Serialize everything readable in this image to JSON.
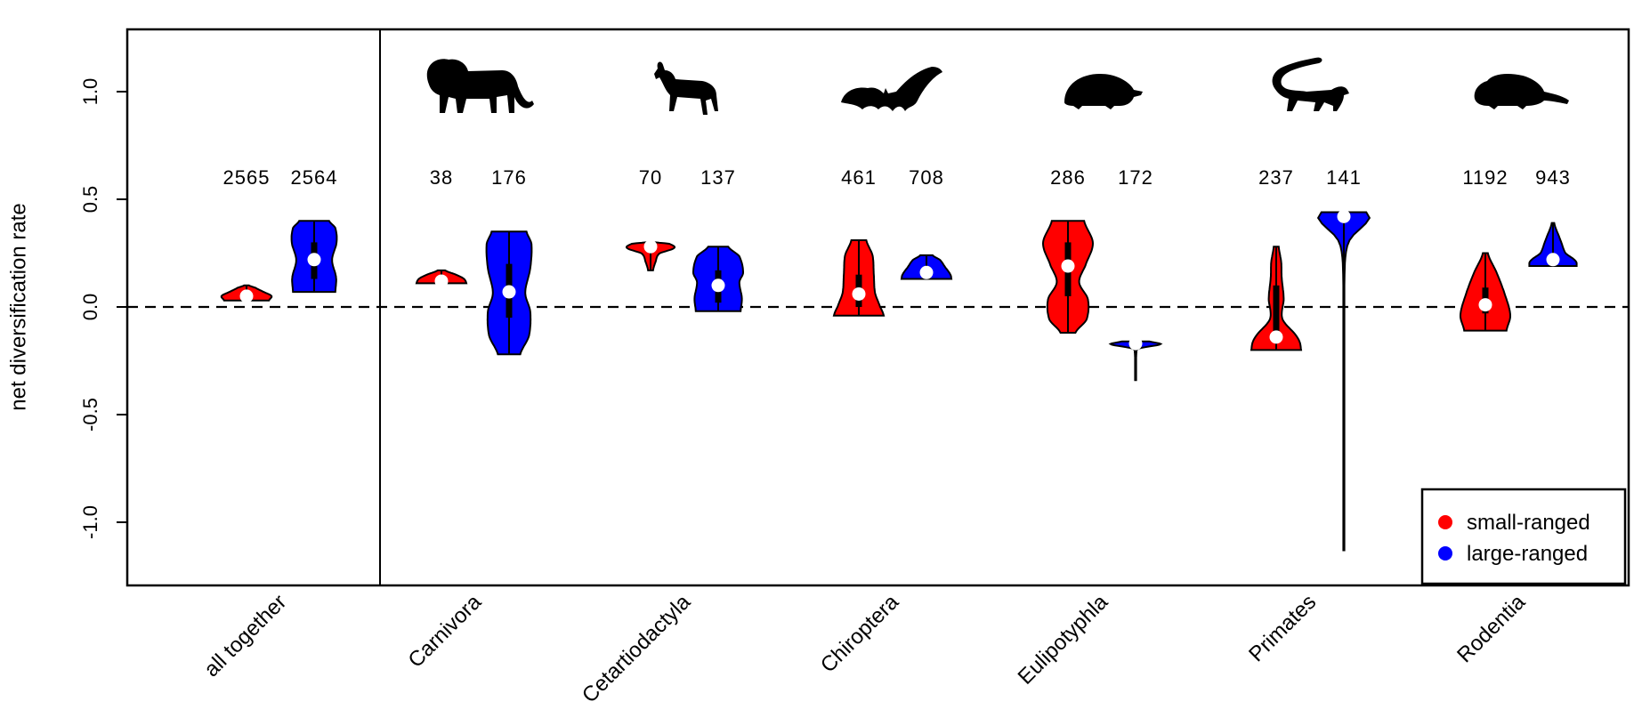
{
  "chart_data": {
    "type": "violin",
    "ylabel": "net diversification rate",
    "ylim": [
      -1.3,
      1.3
    ],
    "yticks": [
      "1.0",
      "0.5",
      "0.0",
      "-0.5",
      "-1.0"
    ],
    "ytick_values": [
      1.0,
      0.5,
      0.0,
      -0.5,
      -1.0
    ],
    "reference_line": 0.0,
    "colors": {
      "small": "#ff0000",
      "large": "#0000ff"
    },
    "legend": {
      "position": "bottom-right",
      "entries": [
        {
          "label": "small-ranged",
          "color": "#ff0000"
        },
        {
          "label": "large-ranged",
          "color": "#0000ff"
        }
      ]
    },
    "groups": [
      {
        "name": "all together",
        "silhouette": "none",
        "small": {
          "n": "2565",
          "min": 0.03,
          "max": 0.1,
          "median": 0.05,
          "q1": 0.04,
          "q3": 0.06,
          "shape": [
            [
              0.0,
              0.9
            ],
            [
              0.3,
              1.0
            ],
            [
              0.6,
              0.65
            ],
            [
              0.85,
              0.35
            ],
            [
              1.0,
              0.1
            ]
          ]
        },
        "large": {
          "n": "2564",
          "min": 0.07,
          "max": 0.4,
          "median": 0.22,
          "q1": 0.13,
          "q3": 0.3,
          "shape": [
            [
              0.0,
              0.85
            ],
            [
              0.2,
              0.88
            ],
            [
              0.45,
              0.72
            ],
            [
              0.7,
              0.9
            ],
            [
              0.9,
              0.85
            ],
            [
              1.0,
              0.6
            ]
          ]
        }
      },
      {
        "name": "Carnivora",
        "silhouette": "lion-icon",
        "small": {
          "n": "38",
          "min": 0.11,
          "max": 0.17,
          "median": 0.12,
          "q1": 0.115,
          "q3": 0.13,
          "shape": [
            [
              0.0,
              1.0
            ],
            [
              0.35,
              0.9
            ],
            [
              0.65,
              0.6
            ],
            [
              1.0,
              0.15
            ]
          ]
        },
        "large": {
          "n": "176",
          "min": -0.22,
          "max": 0.35,
          "median": 0.07,
          "q1": -0.05,
          "q3": 0.2,
          "shape": [
            [
              0.0,
              0.45
            ],
            [
              0.15,
              0.8
            ],
            [
              0.35,
              0.85
            ],
            [
              0.5,
              0.65
            ],
            [
              0.7,
              0.85
            ],
            [
              0.9,
              0.9
            ],
            [
              1.0,
              0.7
            ]
          ]
        }
      },
      {
        "name": "Cetartiodactyla",
        "silhouette": "goat-icon",
        "small": {
          "n": "70",
          "min": 0.17,
          "max": 0.3,
          "median": 0.28,
          "q1": 0.26,
          "q3": 0.29,
          "shape": [
            [
              0.0,
              0.1
            ],
            [
              0.3,
              0.2
            ],
            [
              0.6,
              0.35
            ],
            [
              0.8,
              0.95
            ],
            [
              0.95,
              0.75
            ],
            [
              1.0,
              0.2
            ]
          ]
        },
        "large": {
          "n": "137",
          "min": -0.02,
          "max": 0.28,
          "median": 0.1,
          "q1": 0.02,
          "q3": 0.17,
          "shape": [
            [
              0.0,
              0.9
            ],
            [
              0.2,
              0.95
            ],
            [
              0.45,
              0.85
            ],
            [
              0.6,
              1.0
            ],
            [
              0.85,
              0.85
            ],
            [
              1.0,
              0.4
            ]
          ]
        }
      },
      {
        "name": "Chiroptera",
        "silhouette": "bat-icon",
        "small": {
          "n": "461",
          "min": -0.04,
          "max": 0.31,
          "median": 0.06,
          "q1": 0.0,
          "q3": 0.15,
          "shape": [
            [
              0.0,
              1.0
            ],
            [
              0.12,
              0.85
            ],
            [
              0.3,
              0.65
            ],
            [
              0.55,
              0.6
            ],
            [
              0.8,
              0.55
            ],
            [
              1.0,
              0.3
            ]
          ]
        },
        "large": {
          "n": "708",
          "min": 0.13,
          "max": 0.24,
          "median": 0.16,
          "q1": 0.15,
          "q3": 0.19,
          "shape": [
            [
              0.0,
              1.0
            ],
            [
              0.2,
              0.95
            ],
            [
              0.5,
              0.75
            ],
            [
              0.8,
              0.55
            ],
            [
              1.0,
              0.25
            ]
          ]
        }
      },
      {
        "name": "Eulipotyphla",
        "silhouette": "mole-icon",
        "small": {
          "n": "286",
          "min": -0.12,
          "max": 0.4,
          "median": 0.19,
          "q1": 0.05,
          "q3": 0.3,
          "shape": [
            [
              0.0,
              0.3
            ],
            [
              0.12,
              0.75
            ],
            [
              0.3,
              0.8
            ],
            [
              0.45,
              0.45
            ],
            [
              0.6,
              0.7
            ],
            [
              0.8,
              1.0
            ],
            [
              1.0,
              0.65
            ]
          ]
        },
        "large": {
          "n": "172",
          "min": -0.34,
          "max": -0.16,
          "median": -0.17,
          "q1": -0.18,
          "q3": -0.17,
          "shape": [
            [
              0.0,
              0.02
            ],
            [
              0.7,
              0.03
            ],
            [
              0.82,
              0.15
            ],
            [
              0.93,
              1.0
            ],
            [
              1.0,
              0.55
            ]
          ]
        }
      },
      {
        "name": "Primates",
        "silhouette": "lemur-icon",
        "small": {
          "n": "237",
          "min": -0.2,
          "max": 0.28,
          "median": -0.14,
          "q1": -0.15,
          "q3": 0.1,
          "shape": [
            [
              0.0,
              1.0
            ],
            [
              0.12,
              0.85
            ],
            [
              0.3,
              0.25
            ],
            [
              0.5,
              0.3
            ],
            [
              0.7,
              0.22
            ],
            [
              0.85,
              0.2
            ],
            [
              1.0,
              0.1
            ]
          ]
        },
        "large": {
          "n": "141",
          "min": -1.13,
          "max": 0.44,
          "median": 0.42,
          "q1": 0.41,
          "q3": 0.43,
          "shape": [
            [
              0.0,
              0.02
            ],
            [
              0.7,
              0.02
            ],
            [
              0.86,
              0.05
            ],
            [
              0.92,
              0.25
            ],
            [
              0.98,
              1.0
            ],
            [
              1.0,
              0.9
            ]
          ]
        }
      },
      {
        "name": "Rodentia",
        "silhouette": "beaver-icon",
        "small": {
          "n": "1192",
          "min": -0.11,
          "max": 0.25,
          "median": 0.01,
          "q1": -0.03,
          "q3": 0.09,
          "shape": [
            [
              0.0,
              0.85
            ],
            [
              0.2,
              1.0
            ],
            [
              0.5,
              0.75
            ],
            [
              0.75,
              0.45
            ],
            [
              1.0,
              0.1
            ]
          ]
        },
        "large": {
          "n": "943",
          "min": 0.19,
          "max": 0.39,
          "median": 0.22,
          "q1": 0.21,
          "q3": 0.24,
          "shape": [
            [
              0.0,
              0.95
            ],
            [
              0.12,
              0.9
            ],
            [
              0.3,
              0.5
            ],
            [
              0.6,
              0.3
            ],
            [
              1.0,
              0.05
            ]
          ]
        }
      }
    ]
  }
}
